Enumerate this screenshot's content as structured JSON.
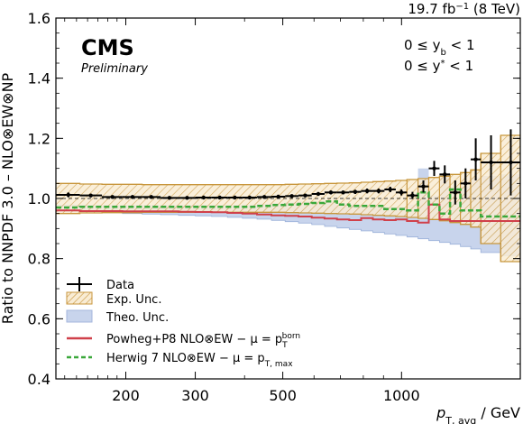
{
  "chart_data": {
    "type": "line",
    "x_scale": "log",
    "xlim": [
      133,
      2000
    ],
    "ylim": [
      0.4,
      1.6
    ],
    "yticks": [
      0.4,
      0.6,
      0.8,
      1.0,
      1.2,
      1.4,
      1.6
    ],
    "xticks": [
      200,
      300,
      500,
      1000
    ],
    "xtick_labels": [
      "200",
      "300",
      "500",
      "1000"
    ],
    "ytick_labels": [
      "0.4",
      "0.6",
      "0.8",
      "1.0",
      "1.2",
      "1.4",
      "1.6"
    ],
    "ylabel": "Ratio to NNPDF 3.0 – NLO⊗EW⊗NP",
    "xlabel_main": "p",
    "xlabel_sub": "T, avg",
    "xlabel_unit": " / GeV",
    "lumi": "19.7 fb",
    "lumi_sup": "−1",
    "lumi_energy": " (8 TeV)",
    "cms_label": "CMS",
    "prelim_label": "Preliminary",
    "ann_yb": "0 ≤ y",
    "ann_yb_sub": "b",
    "ann_yb_tail": " < 1",
    "ann_ystar": "0 ≤ y",
    "ann_ystar_sup": "*",
    "ann_ystar_tail": " < 1",
    "legend": {
      "data": "Data",
      "exp_unc": "Exp. Unc.",
      "theo_unc": "Theo. Unc.",
      "powheg": "Powheg+P8 NLO⊗EW − μ = p",
      "powheg_sup": "born",
      "powheg_sub": "T",
      "herwig": "Herwig 7 NLO⊗EW − μ = p",
      "herwig_sub": "T, max"
    },
    "colors": {
      "data": "#000000",
      "exp_unc_edge": "#c8963c",
      "exp_unc_fill": "#f5e6c8",
      "theo_unc_fill": "#c8d4ec",
      "theo_unc_edge": "#6f8fc8",
      "powheg": "#d0404a",
      "herwig": "#3aa83a",
      "reference": "#000000"
    },
    "bins": [
      133,
      153,
      174,
      196,
      220,
      245,
      272,
      300,
      330,
      362,
      395,
      430,
      468,
      507,
      548,
      592,
      638,
      686,
      737,
      790,
      846,
      905,
      967,
      1032,
      1101,
      1172,
      1248,
      1327,
      1410,
      1497,
      1588,
      1784,
      2000
    ],
    "data_points": {
      "x": [
        143,
        163,
        185,
        208,
        232,
        258,
        286,
        315,
        346,
        378,
        412,
        449,
        487,
        527,
        570,
        615,
        662,
        711,
        763,
        818,
        875,
        936,
        999,
        1066,
        1136,
        1210,
        1287,
        1368,
        1453,
        1542,
        1686,
        1892
      ],
      "y": [
        1.012,
        1.01,
        1.005,
        1.005,
        1.005,
        1.002,
        1.002,
        1.003,
        1.003,
        1.003,
        1.003,
        1.005,
        1.006,
        1.008,
        1.01,
        1.015,
        1.02,
        1.02,
        1.022,
        1.025,
        1.025,
        1.03,
        1.02,
        1.01,
        1.04,
        1.1,
        1.08,
        1.02,
        1.05,
        1.13,
        1.12,
        1.12
      ],
      "yerr": [
        0.008,
        0.005,
        0.004,
        0.004,
        0.004,
        0.004,
        0.004,
        0.004,
        0.004,
        0.004,
        0.004,
        0.004,
        0.004,
        0.004,
        0.005,
        0.005,
        0.006,
        0.006,
        0.007,
        0.008,
        0.008,
        0.009,
        0.01,
        0.012,
        0.02,
        0.025,
        0.03,
        0.04,
        0.05,
        0.07,
        0.09,
        0.11
      ]
    },
    "exp_unc": {
      "center": [
        1.0,
        1.0,
        1.0,
        1.0,
        1.0,
        1.0,
        1.0,
        1.0,
        1.0,
        1.0,
        1.0,
        1.0,
        1.0,
        1.0,
        1.0,
        1.0,
        1.0,
        1.0,
        1.0,
        1.0,
        1.0,
        1.0,
        1.0,
        1.0,
        1.0,
        1.0,
        1.0,
        1.0,
        1.0,
        1.0,
        1.0,
        1.0
      ],
      "half_width": [
        0.05,
        0.048,
        0.047,
        0.047,
        0.046,
        0.046,
        0.046,
        0.046,
        0.046,
        0.046,
        0.046,
        0.046,
        0.046,
        0.047,
        0.048,
        0.049,
        0.05,
        0.051,
        0.052,
        0.054,
        0.056,
        0.058,
        0.06,
        0.063,
        0.066,
        0.07,
        0.074,
        0.08,
        0.086,
        0.095,
        0.15,
        0.21
      ]
    },
    "theo_unc": {
      "upper": [
        0.98,
        0.978,
        0.978,
        0.978,
        0.978,
        0.978,
        0.978,
        0.978,
        0.978,
        0.978,
        0.98,
        0.982,
        0.985,
        0.987,
        0.99,
        0.99,
        0.99,
        0.985,
        0.98,
        0.975,
        0.975,
        0.97,
        0.97,
        0.98,
        1.1,
        1.01,
        1.08,
        0.99,
        1.04,
        1.07,
        1.075,
        1.08
      ],
      "lower": [
        0.958,
        0.955,
        0.952,
        0.95,
        0.948,
        0.946,
        0.944,
        0.942,
        0.94,
        0.937,
        0.934,
        0.931,
        0.927,
        0.923,
        0.918,
        0.913,
        0.907,
        0.902,
        0.897,
        0.892,
        0.887,
        0.882,
        0.877,
        0.872,
        0.866,
        0.86,
        0.854,
        0.848,
        0.84,
        0.832,
        0.82,
        0.81
      ]
    },
    "powheg": [
      0.96,
      0.958,
      0.958,
      0.957,
      0.957,
      0.957,
      0.956,
      0.955,
      0.954,
      0.952,
      0.95,
      0.947,
      0.944,
      0.942,
      0.94,
      0.936,
      0.933,
      0.93,
      0.928,
      0.935,
      0.93,
      0.928,
      0.93,
      0.925,
      0.92,
      0.98,
      0.93,
      0.925,
      0.925,
      0.925,
      0.925,
      0.925
    ],
    "herwig": [
      0.97,
      0.972,
      0.972,
      0.972,
      0.972,
      0.972,
      0.972,
      0.972,
      0.972,
      0.972,
      0.972,
      0.975,
      0.978,
      0.98,
      0.982,
      0.985,
      0.99,
      0.98,
      0.975,
      0.975,
      0.975,
      0.965,
      0.965,
      0.96,
      1.02,
      0.98,
      0.95,
      1.03,
      0.96,
      0.96,
      0.94,
      0.94
    ]
  }
}
